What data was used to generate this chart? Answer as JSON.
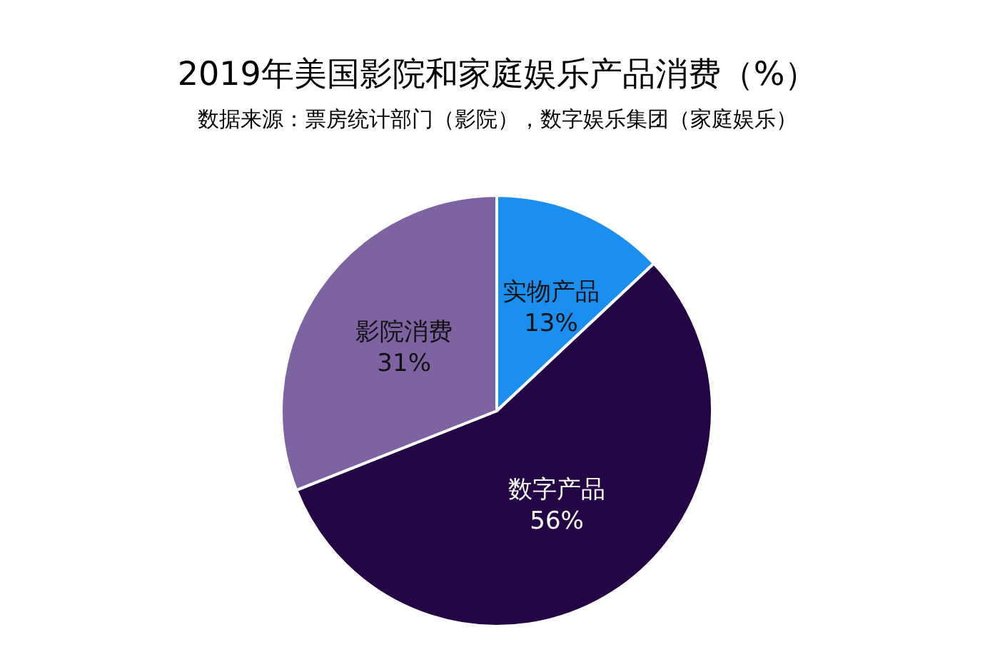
{
  "chart_data": {
    "type": "pie",
    "title": "2019年美国影院和家庭娱乐产品消费（%）",
    "subtitle": "数据来源：票房统计部门（影院），数字娱乐集团（家庭娱乐）",
    "categories": [
      "实物产品",
      "数字产品",
      "影院消费"
    ],
    "values": [
      13,
      56,
      31
    ],
    "colors": [
      "#1a8ff0",
      "#230546",
      "#7d63a1"
    ],
    "value_labels": [
      "13%",
      "56%",
      "31%"
    ],
    "legend": false
  }
}
